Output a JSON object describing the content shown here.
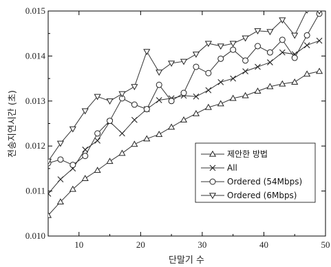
{
  "chart_data": {
    "type": "line",
    "title": "",
    "xlabel": "단말기 수",
    "ylabel": "전송지연시간 (초)",
    "xlim": [
      5,
      50
    ],
    "ylim": [
      0.01,
      0.015
    ],
    "xticks": [
      10,
      20,
      30,
      40,
      50
    ],
    "yticks": [
      0.01,
      0.011,
      0.012,
      0.013,
      0.014,
      0.015
    ],
    "xtick_labels": [
      "10",
      "20",
      "30",
      "40",
      "50"
    ],
    "ytick_labels": [
      "0.010",
      "0.011",
      "0.012",
      "0.013",
      "0.014",
      "0.015"
    ],
    "grid": false,
    "legend_position": "lower-right",
    "x": [
      5,
      7,
      9,
      11,
      13,
      15,
      17,
      19,
      21,
      23,
      25,
      27,
      29,
      31,
      33,
      35,
      37,
      39,
      41,
      43,
      45,
      47,
      49
    ],
    "series": [
      {
        "name": "제안한 방법",
        "marker": "triangle-up",
        "values": [
          0.01046,
          0.01076,
          0.01104,
          0.01128,
          0.01146,
          0.01166,
          0.01184,
          0.01204,
          0.01216,
          0.01226,
          0.01242,
          0.01258,
          0.01272,
          0.01286,
          0.01294,
          0.01306,
          0.01312,
          0.01322,
          0.01332,
          0.01338,
          0.01342,
          0.0136,
          0.01366
        ]
      },
      {
        "name": "All",
        "marker": "x",
        "values": [
          0.01094,
          0.01126,
          0.0115,
          0.01192,
          0.01212,
          0.01254,
          0.01228,
          0.01258,
          0.01282,
          0.01302,
          0.01306,
          0.01312,
          0.0131,
          0.01324,
          0.01342,
          0.0135,
          0.01366,
          0.01376,
          0.01386,
          0.01408,
          0.01404,
          0.01424,
          0.01434
        ]
      },
      {
        "name": "Ordered (54Mbps)",
        "marker": "circle",
        "values": [
          0.01162,
          0.0117,
          0.01158,
          0.01178,
          0.01228,
          0.01256,
          0.01306,
          0.01292,
          0.01282,
          0.01336,
          0.013,
          0.01318,
          0.01376,
          0.01362,
          0.01394,
          0.01414,
          0.0139,
          0.01422,
          0.01408,
          0.01436,
          0.01396,
          0.01446,
          0.01494
        ]
      },
      {
        "name": "Ordered (6Mbps)",
        "marker": "triangle-down",
        "values": [
          0.01166,
          0.01206,
          0.01238,
          0.01278,
          0.0131,
          0.013,
          0.01316,
          0.01332,
          0.0141,
          0.01364,
          0.01384,
          0.01388,
          0.01404,
          0.01428,
          0.01422,
          0.01428,
          0.0144,
          0.01456,
          0.01454,
          0.0148,
          0.01446,
          0.01502,
          0.015
        ]
      }
    ]
  }
}
